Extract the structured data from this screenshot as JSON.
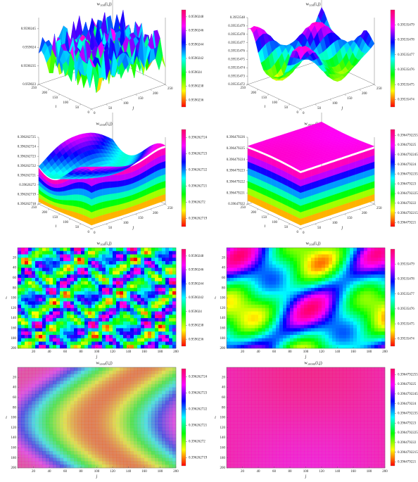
{
  "chart_data": [
    {
      "type": "surface",
      "title": "w₁₀₀(i,j)",
      "xlabel": "j",
      "ylabel": "i",
      "xlim": [
        0,
        250
      ],
      "xticks": [
        0,
        50,
        100,
        150,
        200,
        250
      ],
      "ylim": [
        0,
        250
      ],
      "yticks": [
        0,
        50,
        100,
        150,
        200,
        250
      ],
      "zlim": [
        0.959023,
        0.9590248
      ],
      "zticks": [
        0.959023,
        0.9590235,
        0.959024,
        0.9590245
      ],
      "clim": [
        0.9590235,
        0.9590249
      ],
      "cticks": [
        0.9590236,
        0.9590238,
        0.959024,
        0.9590242,
        0.9590244,
        0.9590246,
        0.9590248
      ],
      "colormap": [
        "#ff0000",
        "#ffff00",
        "#00ff00",
        "#00ffff",
        "#0000ff",
        "#ff00ff",
        "#ff0066"
      ]
    },
    {
      "type": "surface",
      "title": "w₅₀₀(i,j)",
      "xlabel": "j",
      "ylabel": "i",
      "xlim": [
        0,
        250
      ],
      "xticks": [
        0,
        50,
        100,
        150,
        200,
        250
      ],
      "ylim": [
        0,
        250
      ],
      "yticks": [
        0,
        50,
        100,
        150,
        200,
        250
      ],
      "zlim": [
        0.39535472,
        0.3953548
      ],
      "zticks": [
        0.39535472,
        0.39535473,
        0.39535474,
        0.39535475,
        0.39535476,
        0.39535477,
        0.39535478,
        0.39535479,
        0.3953548
      ],
      "clim": [
        0.395354735,
        0.3953548
      ],
      "cticks": [
        0.39535474,
        0.39535475,
        0.39535476,
        0.39535477,
        0.39535478,
        0.39535479
      ],
      "colormap": [
        "#ff0000",
        "#ffff00",
        "#00ff00",
        "#00ffff",
        "#0000ff",
        "#ff00ff",
        "#ff0066"
      ]
    },
    {
      "type": "surface",
      "title": "w₅₀₀₀(i,j)",
      "xlabel": "j",
      "ylabel": "i",
      "xlim": [
        0,
        250
      ],
      "xticks": [
        0,
        50,
        100,
        150,
        200,
        250
      ],
      "ylim": [
        0,
        250
      ],
      "yticks": [
        0,
        50,
        100,
        150,
        200,
        250
      ],
      "zlim": [
        0.396262718,
        0.396262725
      ],
      "zticks": [
        0.396262718,
        0.396262719,
        0.39626272,
        0.396262721,
        0.396262722,
        0.396262723,
        0.396262724,
        0.396262725
      ],
      "clim": [
        0.3962627185,
        0.3962627245
      ],
      "cticks": [
        0.396262719,
        0.39626272,
        0.396262721,
        0.396262722,
        0.396262723,
        0.396262724
      ],
      "colormap": [
        "#ff0000",
        "#ffff00",
        "#00ff00",
        "#00ffff",
        "#0000ff",
        "#ff00ff",
        "#ff0066"
      ]
    },
    {
      "type": "surface",
      "title": "w₂₀₀₀₀(i,j)",
      "xlabel": "j",
      "ylabel": "i",
      "xlim": [
        0,
        250
      ],
      "xticks": [
        0,
        50,
        100,
        150,
        200,
        250
      ],
      "ylim": [
        0,
        250
      ],
      "yticks": [
        0,
        50,
        100,
        150,
        200,
        250
      ],
      "zlim": [
        0.39647922,
        0.396479226
      ],
      "zticks": [
        0.39647922,
        0.396479221,
        0.396479222,
        0.396479223,
        0.396479224,
        0.396479225,
        0.396479226
      ],
      "clim": [
        0.3964792208,
        0.3964792258
      ],
      "cticks": [
        0.396479221,
        0.3964792215,
        0.396479222,
        0.3964792225,
        0.396479223,
        0.3964792235,
        0.396479224,
        0.3964792245,
        0.396479225,
        0.3964792255
      ],
      "colormap": [
        "#ff0000",
        "#ffff00",
        "#00ff00",
        "#00ffff",
        "#0000ff",
        "#ff00ff",
        "#ff0066"
      ]
    },
    {
      "type": "heatmap",
      "title": "w₁₀₀(i,j)",
      "xlabel": "j",
      "ylabel": "i",
      "xlim": [
        0,
        200
      ],
      "xticks": [
        20,
        40,
        60,
        80,
        100,
        120,
        140,
        160,
        180,
        200
      ],
      "ylim": [
        0,
        200
      ],
      "yticks": [
        20,
        40,
        60,
        80,
        100,
        120,
        140,
        160,
        180,
        200
      ],
      "clim": [
        0.9590235,
        0.9590249
      ],
      "cticks": [
        0.9590236,
        0.9590238,
        0.959024,
        0.9590242,
        0.9590244,
        0.9590246,
        0.9590248
      ],
      "colormap": [
        "#ff0000",
        "#ffff00",
        "#00ff00",
        "#00ffff",
        "#0000ff",
        "#ff00ff",
        "#ff0066"
      ]
    },
    {
      "type": "heatmap",
      "title": "w₅₀₀(i,j)",
      "xlabel": "j",
      "ylabel": "i",
      "xlim": [
        0,
        200
      ],
      "xticks": [
        20,
        40,
        60,
        80,
        100,
        120,
        140,
        160,
        180,
        200
      ],
      "ylim": [
        0,
        200
      ],
      "yticks": [
        20,
        40,
        60,
        80,
        100,
        120,
        140,
        160,
        180,
        200
      ],
      "clim": [
        0.395354735,
        0.3953548
      ],
      "cticks": [
        0.39535474,
        0.39535475,
        0.39535476,
        0.39535477,
        0.39535478,
        0.39535479
      ],
      "colormap": [
        "#ff0000",
        "#ffff00",
        "#00ff00",
        "#00ffff",
        "#0000ff",
        "#ff00ff",
        "#ff0066"
      ]
    },
    {
      "type": "heatmap",
      "title": "w₅₀₀₀(i,j)",
      "xlabel": "j",
      "ylabel": "i",
      "xlim": [
        0,
        200
      ],
      "xticks": [
        20,
        40,
        60,
        80,
        100,
        120,
        140,
        160,
        180,
        200
      ],
      "ylim": [
        0,
        200
      ],
      "yticks": [
        20,
        40,
        60,
        80,
        100,
        120,
        140,
        160,
        180,
        200
      ],
      "clim": [
        0.3962627185,
        0.3962627245
      ],
      "cticks": [
        0.396262719,
        0.39626272,
        0.396262721,
        0.396262722,
        0.396262723,
        0.396262724
      ],
      "colormap": [
        "#ff0000",
        "#ffff00",
        "#00ff00",
        "#00ffff",
        "#0000ff",
        "#ff00ff",
        "#ff0066"
      ]
    },
    {
      "type": "heatmap",
      "title": "w₂₀₀₀₀(i,j)",
      "xlabel": "j",
      "ylabel": "i",
      "xlim": [
        0,
        200
      ],
      "xticks": [
        20,
        40,
        60,
        80,
        100,
        120,
        140,
        160,
        180,
        200
      ],
      "ylim": [
        0,
        200
      ],
      "yticks": [
        20,
        40,
        60,
        80,
        100,
        120,
        140,
        160,
        180,
        200
      ],
      "clim": [
        0.3964792208,
        0.3964792258
      ],
      "cticks": [
        0.396479221,
        0.3964792215,
        0.396479222,
        0.3964792225,
        0.396479223,
        0.3964792235,
        0.396479224,
        0.3964792245,
        0.396479225,
        0.3964792255
      ],
      "colormap": [
        "#ff0000",
        "#ffff00",
        "#00ff00",
        "#00ffff",
        "#0000ff",
        "#ff00ff",
        "#ff0066"
      ]
    }
  ]
}
